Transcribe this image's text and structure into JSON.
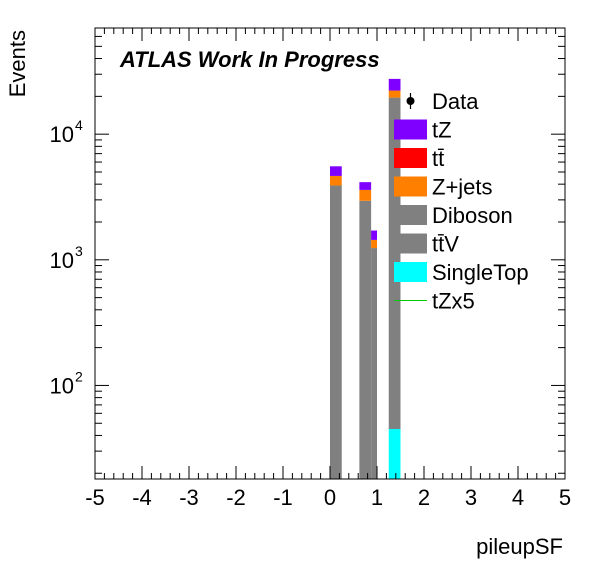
{
  "chart_data": {
    "type": "bar",
    "stacked": true,
    "title": "ATLAS Work In Progress",
    "xlabel": "pileupSF",
    "ylabel": "Events",
    "xlim": [
      -5,
      5
    ],
    "ylim": [
      18,
      70000
    ],
    "yscale": "log",
    "x_ticks": [
      "-5",
      "-4",
      "-3",
      "-2",
      "-1",
      "0",
      "1",
      "2",
      "3",
      "4",
      "5"
    ],
    "y_ticks": [
      {
        "base": "10",
        "exp": "2",
        "value": 100
      },
      {
        "base": "10",
        "exp": "3",
        "value": 1000
      },
      {
        "base": "10",
        "exp": "4",
        "value": 10000
      }
    ],
    "bins": [
      {
        "x_low": 0.0,
        "x_high": 0.25
      },
      {
        "x_low": 0.625,
        "x_high": 0.875
      },
      {
        "x_low": 0.875,
        "x_high": 1.0
      },
      {
        "x_low": 1.25,
        "x_high": 1.5
      }
    ],
    "series": [
      {
        "name": "SingleTop",
        "color": "#00ffff",
        "values": [
          0,
          0,
          0,
          45
        ]
      },
      {
        "name": "Diboson",
        "color": "#808080",
        "values": [
          3900,
          2950,
          1240,
          19500
        ]
      },
      {
        "name": "Z+jets",
        "color": "#ff7f00",
        "values": [
          750,
          650,
          200,
          2700
        ]
      },
      {
        "name": "tZ",
        "color": "#7f00ff",
        "values": [
          900,
          550,
          270,
          5300
        ]
      }
    ],
    "legend": {
      "placement": "right",
      "entries": [
        {
          "label": "Data",
          "color": "#000000",
          "style": "marker"
        },
        {
          "label": "tZ",
          "color": "#7f00ff",
          "style": "box"
        },
        {
          "label": "tt̄",
          "color": "#ff0000",
          "style": "box"
        },
        {
          "label": "Z+jets",
          "color": "#ff7f00",
          "style": "box"
        },
        {
          "label": "Diboson",
          "color": "#808080",
          "style": "box"
        },
        {
          "label": "tt̄V",
          "color": "#808080",
          "style": "box"
        },
        {
          "label": "SingleTop",
          "color": "#00ffff",
          "style": "box"
        },
        {
          "label": "tZx5",
          "color": "#00cc00",
          "style": "line"
        }
      ]
    }
  }
}
